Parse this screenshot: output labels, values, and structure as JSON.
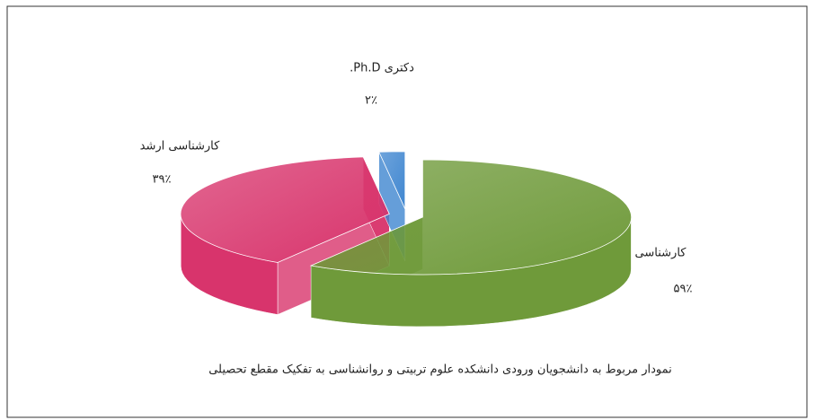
{
  "chart_data": {
    "type": "pie",
    "caption": "نمودار مربوط به دانشجویان ورودی دانشکده علوم تربیتی و روانشناسی به تفکیک مقطع تحصیلی",
    "categories": [
      "کارشناسی",
      "کارشناسی ارشد",
      "دکتری Ph.D."
    ],
    "values": [
      59,
      39,
      2
    ],
    "value_labels": [
      "۵۹٪",
      "۳۹٪",
      "۲٪"
    ],
    "colors": [
      "#6f9a3a",
      "#d8346c",
      "#3f86d0"
    ]
  }
}
